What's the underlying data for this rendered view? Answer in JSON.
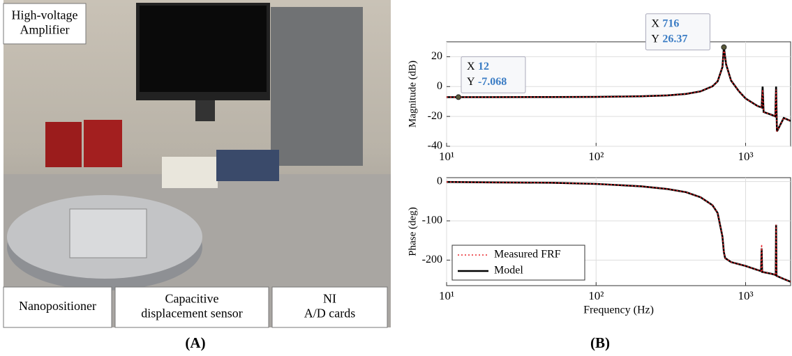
{
  "photo": {
    "labels": [
      {
        "lines": [
          "High-voltage",
          "Amplifier"
        ]
      },
      {
        "lines": [
          "Nanopositioner"
        ]
      },
      {
        "lines": [
          "Capacitive",
          "displacement sensor"
        ]
      },
      {
        "lines": [
          "NI",
          "A/D cards"
        ]
      }
    ]
  },
  "captions": [
    "(A)",
    "(B)"
  ],
  "chart_data": [
    {
      "type": "line",
      "ylabel": "Magnitude (dB)",
      "log_x": true,
      "grid": true,
      "xlim": [
        10,
        2000
      ],
      "ylim": [
        -40,
        30
      ],
      "xticks": [
        {
          "value": 10,
          "label": "10¹"
        },
        {
          "value": 100,
          "label": "10²"
        },
        {
          "value": 1000,
          "label": "10³"
        }
      ],
      "yticks": [
        20,
        0,
        -20,
        -40
      ],
      "x": [
        10,
        12,
        20,
        50,
        100,
        200,
        300,
        400,
        500,
        600,
        650,
        700,
        716,
        740,
        800,
        900,
        1000,
        1200,
        1280,
        1300,
        1320,
        1500,
        1580,
        1600,
        1620,
        1800,
        2000
      ],
      "series": [
        {
          "name": "Model",
          "color": "#000000",
          "values": [
            -7.07,
            -7.068,
            -7.05,
            -7.0,
            -6.9,
            -6.5,
            -5.9,
            -4.9,
            -3.2,
            0.2,
            3.5,
            13,
            26.37,
            15,
            4,
            -3,
            -8,
            -13,
            -14,
            0,
            -17,
            -19,
            -20,
            0,
            -30,
            -21,
            -23
          ]
        },
        {
          "name": "Measured FRF",
          "color": "#e8262b",
          "values": [
            -7.07,
            -7.068,
            -7.05,
            -7.0,
            -6.9,
            -6.5,
            -5.9,
            -4.9,
            -3.2,
            0.2,
            3.5,
            13,
            26.37,
            15,
            4,
            -3,
            -8,
            -13,
            -14,
            -2,
            -17,
            -19,
            -20,
            -2,
            -30,
            -21,
            -23
          ]
        }
      ],
      "datatip_x_label": "X",
      "datatip_y_label": "Y",
      "datatips": [
        {
          "x": 716,
          "y": 26.37
        },
        {
          "x": 12,
          "y": -7.068
        }
      ]
    },
    {
      "type": "line",
      "ylabel": "Phase (deg)",
      "xlabel": "Frequency (Hz)",
      "log_x": true,
      "grid": true,
      "legend": "lower-left",
      "xlim": [
        10,
        2000
      ],
      "ylim": [
        -265,
        10
      ],
      "xticks": [
        {
          "value": 10,
          "label": "10¹"
        },
        {
          "value": 100,
          "label": "10²"
        },
        {
          "value": 1000,
          "label": "10³"
        }
      ],
      "yticks": [
        0,
        -100,
        -200
      ],
      "x": [
        10,
        20,
        50,
        100,
        200,
        300,
        400,
        500,
        600,
        650,
        700,
        716,
        730,
        800,
        1000,
        1200,
        1270,
        1280,
        1290,
        1500,
        1590,
        1600,
        1610,
        1800,
        2000
      ],
      "series": [
        {
          "name": "Model",
          "color": "#000000",
          "values": [
            -1,
            -2,
            -3,
            -6,
            -12,
            -19,
            -27,
            -40,
            -60,
            -80,
            -140,
            -180,
            -195,
            -205,
            -215,
            -225,
            -228,
            -170,
            -230,
            -235,
            -238,
            -110,
            -240,
            -248,
            -255
          ]
        },
        {
          "name": "Measured FRF",
          "color": "#e8262b",
          "values": [
            -1,
            -2,
            -3,
            -6,
            -12,
            -19,
            -27,
            -40,
            -60,
            -80,
            -140,
            -180,
            -195,
            -205,
            -215,
            -225,
            -228,
            -160,
            -230,
            -235,
            -238,
            -110,
            -240,
            -248,
            -255
          ]
        }
      ]
    }
  ]
}
